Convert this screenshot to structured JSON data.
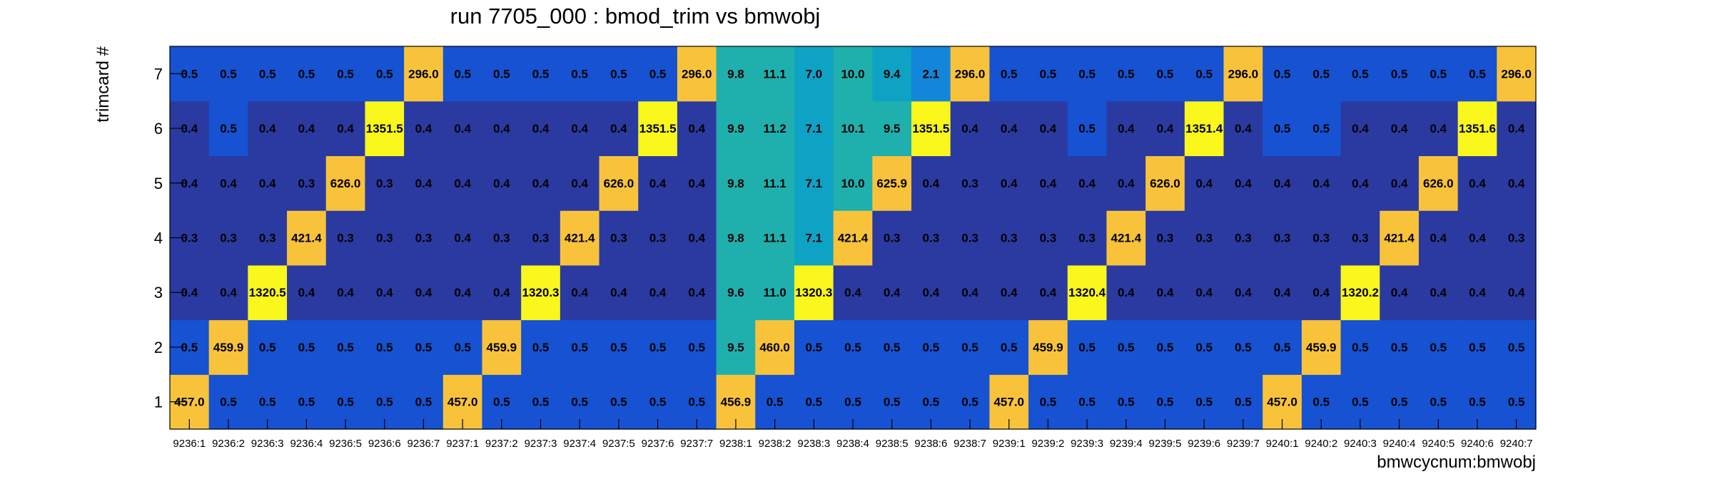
{
  "chart_data": {
    "type": "heatmap",
    "title": "run 7705_000 : bmod_trim vs bmwobj",
    "xlabel": "bmwcycnum:bmwobj",
    "ylabel": "trimcard #",
    "x_categories": [
      "9236:1",
      "9236:2",
      "9236:3",
      "9236:4",
      "9236:5",
      "9236:6",
      "9236:7",
      "9237:1",
      "9237:2",
      "9237:3",
      "9237:4",
      "9237:5",
      "9237:6",
      "9237:7",
      "9238:1",
      "9238:2",
      "9238:3",
      "9238:4",
      "9238:5",
      "9238:6",
      "9238:7",
      "9239:1",
      "9239:2",
      "9239:3",
      "9239:4",
      "9239:5",
      "9239:6",
      "9239:7",
      "9240:1",
      "9240:2",
      "9240:3",
      "9240:4",
      "9240:5",
      "9240:6",
      "9240:7"
    ],
    "y_categories": [
      "1",
      "2",
      "3",
      "4",
      "5",
      "6",
      "7"
    ],
    "cells": [
      [
        "457.0",
        "0.5",
        "0.5",
        "0.5",
        "0.5",
        "0.5",
        "0.5",
        "457.0",
        "0.5",
        "0.5",
        "0.5",
        "0.5",
        "0.5",
        "0.5",
        "456.9",
        "0.5",
        "0.5",
        "0.5",
        "0.5",
        "0.5",
        "0.5",
        "457.0",
        "0.5",
        "0.5",
        "0.5",
        "0.5",
        "0.5",
        "0.5",
        "457.0",
        "0.5",
        "0.5",
        "0.5",
        "0.5",
        "0.5",
        "0.5"
      ],
      [
        "0.5",
        "459.9",
        "0.5",
        "0.5",
        "0.5",
        "0.5",
        "0.5",
        "0.5",
        "459.9",
        "0.5",
        "0.5",
        "0.5",
        "0.5",
        "0.5",
        "9.5",
        "460.0",
        "0.5",
        "0.5",
        "0.5",
        "0.5",
        "0.5",
        "0.5",
        "459.9",
        "0.5",
        "0.5",
        "0.5",
        "0.5",
        "0.5",
        "0.5",
        "459.9",
        "0.5",
        "0.5",
        "0.5",
        "0.5",
        "0.5"
      ],
      [
        "0.4",
        "0.4",
        "1320.5",
        "0.4",
        "0.4",
        "0.4",
        "0.4",
        "0.4",
        "0.4",
        "1320.3",
        "0.4",
        "0.4",
        "0.4",
        "0.4",
        "9.6",
        "11.0",
        "1320.3",
        "0.4",
        "0.4",
        "0.4",
        "0.4",
        "0.4",
        "0.4",
        "1320.4",
        "0.4",
        "0.4",
        "0.4",
        "0.4",
        "0.4",
        "0.4",
        "1320.2",
        "0.4",
        "0.4",
        "0.4",
        "0.4"
      ],
      [
        "0.3",
        "0.3",
        "0.3",
        "421.4",
        "0.3",
        "0.3",
        "0.3",
        "0.4",
        "0.3",
        "0.3",
        "421.4",
        "0.3",
        "0.3",
        "0.4",
        "9.8",
        "11.1",
        "7.1",
        "421.4",
        "0.3",
        "0.3",
        "0.3",
        "0.3",
        "0.3",
        "0.3",
        "421.4",
        "0.3",
        "0.3",
        "0.3",
        "0.3",
        "0.3",
        "0.3",
        "421.4",
        "0.4",
        "0.4",
        "0.3"
      ],
      [
        "0.4",
        "0.4",
        "0.4",
        "0.3",
        "626.0",
        "0.3",
        "0.4",
        "0.4",
        "0.4",
        "0.4",
        "0.4",
        "626.0",
        "0.4",
        "0.4",
        "9.8",
        "11.1",
        "7.1",
        "10.0",
        "625.9",
        "0.4",
        "0.3",
        "0.4",
        "0.4",
        "0.4",
        "0.4",
        "626.0",
        "0.4",
        "0.4",
        "0.4",
        "0.4",
        "0.4",
        "0.4",
        "626.0",
        "0.4",
        "0.4"
      ],
      [
        "0.4",
        "0.5",
        "0.4",
        "0.4",
        "0.4",
        "1351.5",
        "0.4",
        "0.4",
        "0.4",
        "0.4",
        "0.4",
        "0.4",
        "1351.5",
        "0.4",
        "9.9",
        "11.2",
        "7.1",
        "10.1",
        "9.5",
        "1351.5",
        "0.4",
        "0.4",
        "0.4",
        "0.5",
        "0.4",
        "0.4",
        "1351.4",
        "0.4",
        "0.5",
        "0.5",
        "0.4",
        "0.4",
        "0.4",
        "1351.6",
        "0.4"
      ],
      [
        "0.5",
        "0.5",
        "0.5",
        "0.5",
        "0.5",
        "0.5",
        "296.0",
        "0.5",
        "0.5",
        "0.5",
        "0.5",
        "0.5",
        "0.5",
        "296.0",
        "9.8",
        "11.1",
        "7.0",
        "10.0",
        "9.4",
        "2.1",
        "296.0",
        "0.5",
        "0.5",
        "0.5",
        "0.5",
        "0.5",
        "0.5",
        "296.0",
        "0.5",
        "0.5",
        "0.5",
        "0.5",
        "0.5",
        "0.5",
        "296.0"
      ]
    ],
    "colors": {
      "dark_navy": "#2b3aa0",
      "blue": "#1652d1",
      "mid_blue": "#1486d9",
      "dark_teal": "#0ea2c5",
      "teal": "#1fb0ad",
      "orange": "#f8c33a",
      "yellow": "#f9f71b"
    }
  }
}
